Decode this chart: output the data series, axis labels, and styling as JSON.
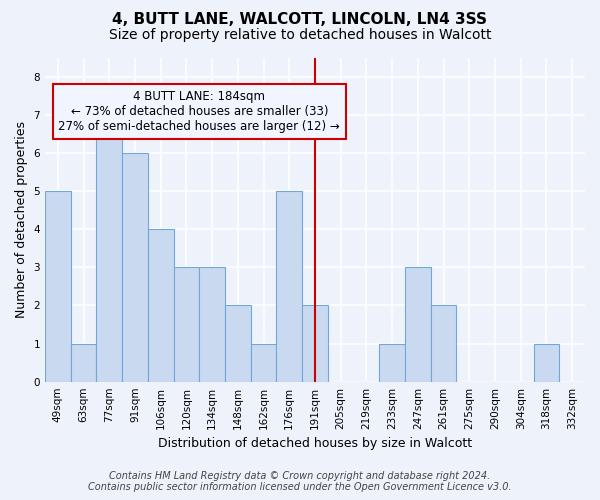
{
  "title_line1": "4, BUTT LANE, WALCOTT, LINCOLN, LN4 3SS",
  "title_line2": "Size of property relative to detached houses in Walcott",
  "xlabel": "Distribution of detached houses by size in Walcott",
  "ylabel": "Number of detached properties",
  "categories": [
    "49sqm",
    "63sqm",
    "77sqm",
    "91sqm",
    "106sqm",
    "120sqm",
    "134sqm",
    "148sqm",
    "162sqm",
    "176sqm",
    "191sqm",
    "205sqm",
    "219sqm",
    "233sqm",
    "247sqm",
    "261sqm",
    "275sqm",
    "290sqm",
    "304sqm",
    "318sqm",
    "332sqm"
  ],
  "values": [
    5,
    1,
    7,
    6,
    4,
    3,
    3,
    2,
    1,
    5,
    2,
    0,
    0,
    1,
    3,
    2,
    0,
    0,
    0,
    1,
    0
  ],
  "bar_color": "#c9daf0",
  "bar_edge_color": "#6fa8d8",
  "highlight_index": 10,
  "highlight_line_color": "#cc0000",
  "annotation_text": "4 BUTT LANE: 184sqm\n← 73% of detached houses are smaller (33)\n27% of semi-detached houses are larger (12) →",
  "annotation_box_color": "#cc0000",
  "annotation_box_bg": "#f0f5ff",
  "ylim": [
    0,
    8.5
  ],
  "yticks": [
    0,
    1,
    2,
    3,
    4,
    5,
    6,
    7,
    8
  ],
  "footer_line1": "Contains HM Land Registry data © Crown copyright and database right 2024.",
  "footer_line2": "Contains public sector information licensed under the Open Government Licence v3.0.",
  "background_color": "#eef2fb",
  "grid_color": "#ffffff",
  "title_fontsize": 11,
  "subtitle_fontsize": 10,
  "ylabel_fontsize": 9,
  "xlabel_fontsize": 9,
  "tick_fontsize": 7.5,
  "annotation_fontsize": 8.5,
  "footer_fontsize": 7
}
